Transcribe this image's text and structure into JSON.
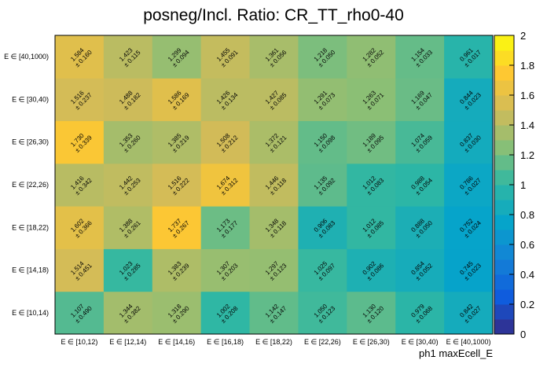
{
  "chart_data": {
    "type": "heatmap",
    "title": "posneg/Incl. Ratio: CR_TT_rho0-40",
    "xlabel": "ph1 maxEcell_E",
    "ylabel": "",
    "x_categories": [
      "E ∈ [10,12)",
      "E ∈ [12,14)",
      "E ∈ [14,16)",
      "E ∈ [16,18)",
      "E ∈ [18,22)",
      "E ∈ [22,26)",
      "E ∈ [26,30)",
      "E ∈ [30,40)",
      "E ∈ [40,1000)"
    ],
    "y_categories": [
      "E ∈ [10,14)",
      "E ∈ [14,18)",
      "E ∈ [18,22)",
      "E ∈ [22,26)",
      "E ∈ [26,30)",
      "E ∈ [30,40)",
      "E ∈ [40,1000)"
    ],
    "values": [
      [
        1.107,
        1.344,
        1.318,
        1.002,
        1.142,
        1.05,
        1.13,
        0.979,
        0.842
      ],
      [
        1.514,
        1.023,
        1.383,
        1.307,
        1.297,
        1.025,
        0.902,
        0.854,
        0.745
      ],
      [
        1.602,
        1.388,
        1.737,
        1.173,
        1.348,
        0.906,
        1.012,
        0.888,
        0.752
      ],
      [
        1.416,
        1.442,
        1.516,
        1.674,
        1.446,
        1.135,
        1.012,
        0.988,
        0.786
      ],
      [
        1.73,
        1.353,
        1.385,
        1.508,
        1.372,
        1.15,
        1.189,
        1.074,
        0.837
      ],
      [
        1.516,
        1.488,
        1.586,
        1.426,
        1.427,
        1.291,
        1.263,
        1.169,
        0.844
      ],
      [
        1.584,
        1.423,
        1.299,
        1.455,
        1.361,
        1.218,
        1.282,
        1.154,
        0.961
      ]
    ],
    "errors": [
      [
        0.49,
        0.382,
        0.29,
        0.208,
        0.147,
        0.123,
        0.12,
        0.068,
        0.027
      ],
      [
        0.451,
        0.285,
        0.239,
        0.203,
        0.123,
        0.097,
        0.086,
        0.052,
        0.023
      ],
      [
        0.366,
        0.261,
        0.267,
        0.177,
        0.118,
        0.083,
        0.085,
        0.05,
        0.024
      ],
      [
        0.342,
        0.253,
        0.222,
        0.312,
        0.118,
        0.092,
        0.083,
        0.054,
        0.027
      ],
      [
        0.339,
        0.26,
        0.219,
        0.212,
        0.121,
        0.098,
        0.095,
        0.059,
        0.03
      ],
      [
        0.237,
        0.182,
        0.169,
        0.134,
        0.085,
        0.073,
        0.071,
        0.047,
        0.023
      ],
      [
        0.16,
        0.115,
        0.094,
        0.091,
        0.056,
        0.05,
        0.052,
        0.033,
        0.017
      ]
    ],
    "value_prefix": "",
    "error_prefix": "± ",
    "zlim": [
      0,
      2
    ],
    "colorbar_ticks": [
      "0",
      "0.2",
      "0.4",
      "0.6",
      "0.8",
      "1",
      "1.2",
      "1.4",
      "1.6",
      "1.8",
      "2"
    ],
    "colormap": [
      "#352a87",
      "#0f5cdd",
      "#1481d6",
      "#06a4ca",
      "#2eb7a4",
      "#87bf77",
      "#d1bb59",
      "#fec832",
      "#f9fb0e"
    ]
  }
}
